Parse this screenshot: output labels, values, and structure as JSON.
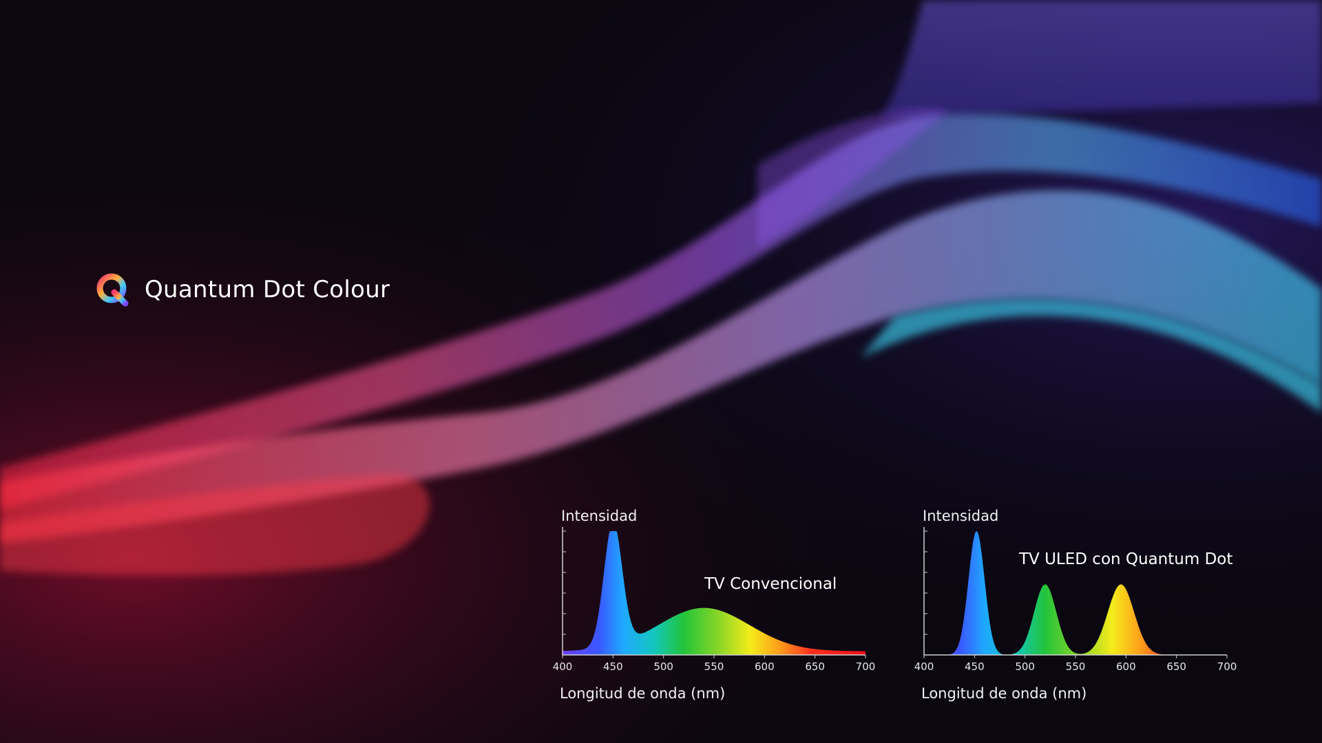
{
  "brand": {
    "title": "Quantum Dot Colour",
    "icon": "quantum-q-logo-icon"
  },
  "colors": {
    "background": "#0a0710",
    "wave_pink": "#ff3f8a",
    "wave_purple": "#a24cff",
    "wave_cyan": "#3fd0ff",
    "axis": "#d0d0d0"
  },
  "chart_data": [
    {
      "type": "area",
      "ylabel": "Intensidad",
      "xlabel": "Longitud de onda (nm)",
      "series_label": "TV Convencional",
      "xlim": [
        400,
        700
      ],
      "ylim": [
        0,
        1
      ],
      "xticks": [
        400,
        450,
        500,
        550,
        600,
        650,
        700
      ],
      "fill": "spectrum",
      "peaks": [
        {
          "center": 450,
          "height": 1.0,
          "width": 9
        },
        {
          "center": 540,
          "height": 0.35,
          "width": 45
        }
      ],
      "baseline": 0.03
    },
    {
      "type": "area",
      "ylabel": "Intensidad",
      "xlabel": "Longitud de onda (nm)",
      "series_label": "TV ULED con Quantum Dot",
      "xlim": [
        400,
        700
      ],
      "ylim": [
        0,
        1
      ],
      "xticks": [
        400,
        450,
        500,
        550,
        600,
        650,
        700
      ],
      "fill": "spectrum",
      "peaks": [
        {
          "center": 452,
          "height": 1.0,
          "width": 8
        },
        {
          "center": 520,
          "height": 0.57,
          "width": 11
        },
        {
          "center": 595,
          "height": 0.57,
          "width": 13
        }
      ],
      "baseline": 0.0
    }
  ]
}
